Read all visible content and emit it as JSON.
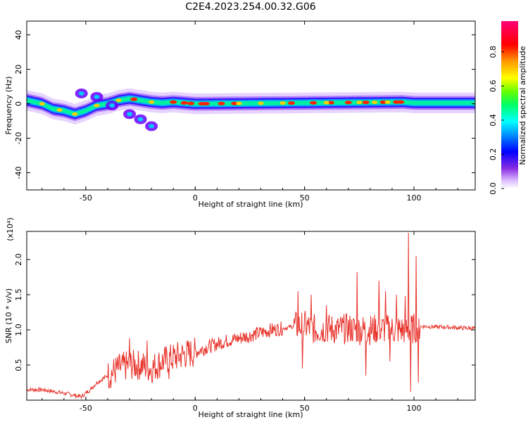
{
  "title": "C2E4.2023.254.00.32.G06",
  "chart_data": [
    {
      "type": "heatmap",
      "xlabel": "Height of straight line (km)",
      "ylabel": "Frequency (Hz)",
      "xlim": [
        -77,
        128
      ],
      "ylim": [
        -50,
        48
      ],
      "xticks": [
        -50,
        0,
        50,
        100
      ],
      "yticks": [
        -40,
        -20,
        0,
        20,
        40
      ],
      "colorbar": {
        "label": "Normalized spectral amplitude",
        "ticks": [
          "0.0",
          "0.2",
          "0.4",
          "0.6",
          "0.8"
        ],
        "range": [
          0,
          0.98
        ],
        "colormap": [
          "#ffffff",
          "#b388ff",
          "#6a00ff",
          "#0000ff",
          "#00a0ff",
          "#00ffff",
          "#00ff66",
          "#7fff00",
          "#ffff00",
          "#ff9900",
          "#ff0000",
          "#ff0066"
        ]
      },
      "ridge": [
        {
          "x": -77,
          "f": 2
        },
        {
          "x": -70,
          "f": 0
        },
        {
          "x": -65,
          "f": -3
        },
        {
          "x": -60,
          "f": -4
        },
        {
          "x": -55,
          "f": -6
        },
        {
          "x": -50,
          "f": -4
        },
        {
          "x": -45,
          "f": -1
        },
        {
          "x": -40,
          "f": 0
        },
        {
          "x": -35,
          "f": 2
        },
        {
          "x": -30,
          "f": 3
        },
        {
          "x": -25,
          "f": 2
        },
        {
          "x": -20,
          "f": 1
        },
        {
          "x": -15,
          "f": 0.5
        },
        {
          "x": -10,
          "f": 1
        },
        {
          "x": 0,
          "f": 0
        },
        {
          "x": 50,
          "f": 0.5
        },
        {
          "x": 95,
          "f": 1
        },
        {
          "x": 100,
          "f": 0.5
        },
        {
          "x": 128,
          "f": 0.5
        }
      ],
      "secondary_branch": [
        {
          "x": -52,
          "f": 6
        },
        {
          "x": -45,
          "f": 4
        },
        {
          "x": -38,
          "f": -1
        },
        {
          "x": -30,
          "f": -6
        },
        {
          "x": -25,
          "f": -9
        },
        {
          "x": -20,
          "f": -13
        }
      ]
    },
    {
      "type": "line",
      "xlabel": "Height of straight line (km)",
      "ylabel": "SNR (10 * v/v)",
      "yscale_label": "(x10⁴)",
      "xlim": [
        -77,
        128
      ],
      "ylim": [
        0,
        2.4
      ],
      "xticks": [
        -50,
        0,
        50,
        100
      ],
      "yticks": [
        0.5,
        1.0,
        1.5,
        2.0
      ],
      "color": "#e8322a",
      "series": [
        {
          "x": [
            -77,
            -70,
            -60,
            -52,
            -48,
            -45,
            -40,
            -35,
            -30,
            -25,
            -20,
            -15,
            -10,
            -5,
            0,
            5,
            10,
            15,
            20,
            25,
            30,
            35,
            40,
            45,
            50,
            55,
            60,
            65,
            70,
            75,
            80,
            85,
            90,
            95,
            98,
            100,
            102,
            105,
            110,
            115,
            120,
            128
          ],
          "values": [
            0.15,
            0.15,
            0.1,
            0.05,
            0.15,
            0.25,
            0.35,
            0.45,
            0.5,
            0.5,
            0.45,
            0.55,
            0.6,
            0.65,
            0.68,
            0.75,
            0.8,
            0.85,
            0.88,
            0.92,
            0.96,
            1.0,
            1.02,
            1.05,
            1.06,
            1.0,
            1.02,
            1.0,
            1.02,
            1.0,
            1.0,
            1.02,
            1.0,
            1.0,
            1.0,
            1.02,
            1.05,
            1.05,
            1.04,
            1.04,
            1.03,
            1.02
          ],
          "spikes": [
            {
              "x": 47,
              "y": 1.55
            },
            {
              "x": 49,
              "y": 0.45
            },
            {
              "x": 53,
              "y": 1.5
            },
            {
              "x": 60,
              "y": 1.35
            },
            {
              "x": 74,
              "y": 1.82
            },
            {
              "x": 78,
              "y": 0.35
            },
            {
              "x": 84,
              "y": 1.7
            },
            {
              "x": 87,
              "y": 1.55
            },
            {
              "x": 89,
              "y": 0.55
            },
            {
              "x": 92,
              "y": 1.5
            },
            {
              "x": 96,
              "y": 1.48
            },
            {
              "x": 97.5,
              "y": 2.38
            },
            {
              "x": 98.5,
              "y": 0.12
            },
            {
              "x": 101,
              "y": 2.05
            },
            {
              "x": 102,
              "y": 0.25
            },
            {
              "x": -30,
              "y": 0.88
            },
            {
              "x": -22,
              "y": 0.85
            },
            {
              "x": -12,
              "y": 0.3
            }
          ]
        }
      ]
    }
  ]
}
